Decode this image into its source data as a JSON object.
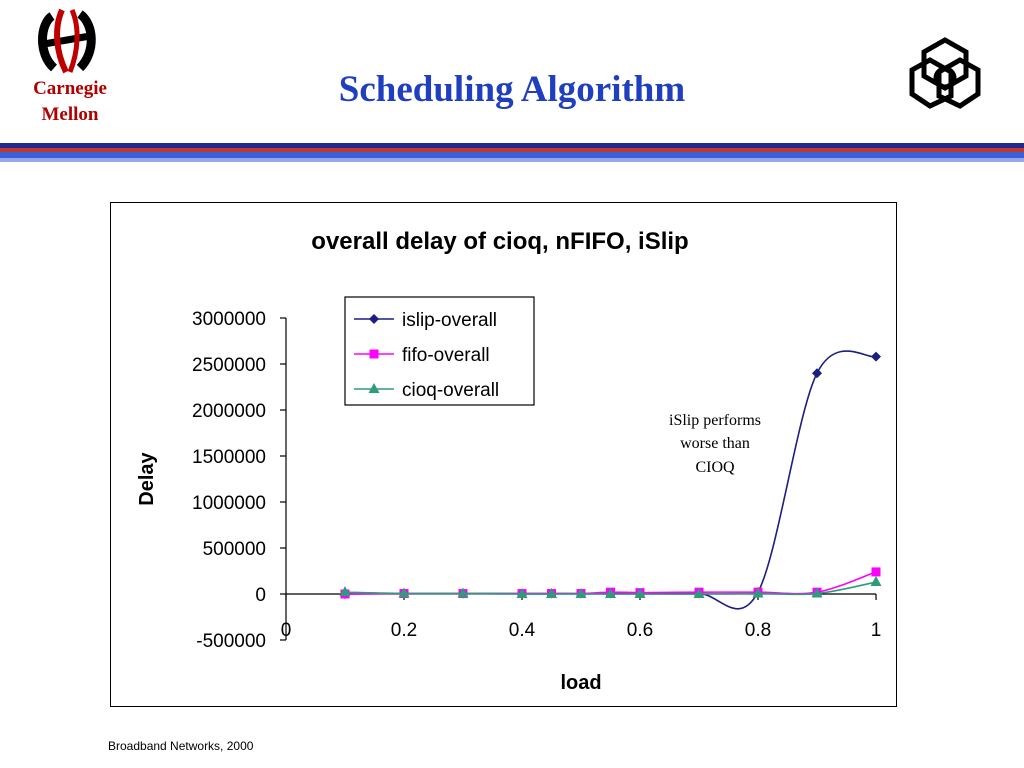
{
  "header": {
    "institution_lines": [
      "Carnegie",
      "Mellon"
    ],
    "title": "Scheduling Algorithm",
    "stripe_colors": [
      "#1f2a8c",
      "#c0392b",
      "#3a5fd9",
      "#9aa5e8"
    ]
  },
  "icons": {
    "left_logo": "cmu-logo-icon",
    "right_logo": "interlocked-triangles-logo-icon"
  },
  "footer": {
    "text": "Broadband Networks, 2000"
  },
  "annotation": {
    "lines": [
      "iSlip performs",
      "worse than",
      "CIOQ"
    ]
  },
  "chart_data": {
    "type": "line",
    "title": "overall delay of cioq, nFIFO, iSlip",
    "xlabel": "load",
    "ylabel": "Delay",
    "xlim": [
      0,
      1
    ],
    "ylim": [
      -500000,
      3000000
    ],
    "xticks": [
      0,
      0.2,
      0.4,
      0.6,
      0.8,
      1
    ],
    "xtick_labels": [
      "0",
      "0.2",
      "0.4",
      "0.6",
      "0.8",
      "1"
    ],
    "yticks": [
      -500000,
      0,
      500000,
      1000000,
      1500000,
      2000000,
      2500000,
      3000000
    ],
    "ytick_labels": [
      "-500000",
      "0",
      "500000",
      "1000000",
      "1500000",
      "2000000",
      "2500000",
      "3000000"
    ],
    "grid": false,
    "legend_position": "top-center",
    "smooth": true,
    "series": [
      {
        "name": "islip-overall",
        "color": "#1a1f80",
        "marker": "diamond",
        "x": [
          0.1,
          0.2,
          0.3,
          0.4,
          0.45,
          0.5,
          0.55,
          0.6,
          0.7,
          0.8,
          0.9,
          1.0
        ],
        "y": [
          0,
          5000,
          5000,
          5000,
          5000,
          5000,
          5000,
          5000,
          5000,
          20000,
          2400000,
          2580000
        ]
      },
      {
        "name": "fifo-overall",
        "color": "#ff00ff",
        "marker": "square",
        "x": [
          0.1,
          0.2,
          0.3,
          0.4,
          0.45,
          0.5,
          0.55,
          0.6,
          0.7,
          0.8,
          0.9,
          1.0
        ],
        "y": [
          0,
          5000,
          5000,
          5000,
          5000,
          5000,
          20000,
          15000,
          20000,
          20000,
          20000,
          240000
        ]
      },
      {
        "name": "cioq-overall",
        "color": "#2e9b7a",
        "marker": "triangle",
        "x": [
          0.1,
          0.2,
          0.3,
          0.4,
          0.45,
          0.5,
          0.55,
          0.6,
          0.7,
          0.8,
          0.9,
          1.0
        ],
        "y": [
          20000,
          5000,
          5000,
          0,
          0,
          0,
          0,
          0,
          0,
          5000,
          5000,
          130000
        ]
      }
    ]
  }
}
